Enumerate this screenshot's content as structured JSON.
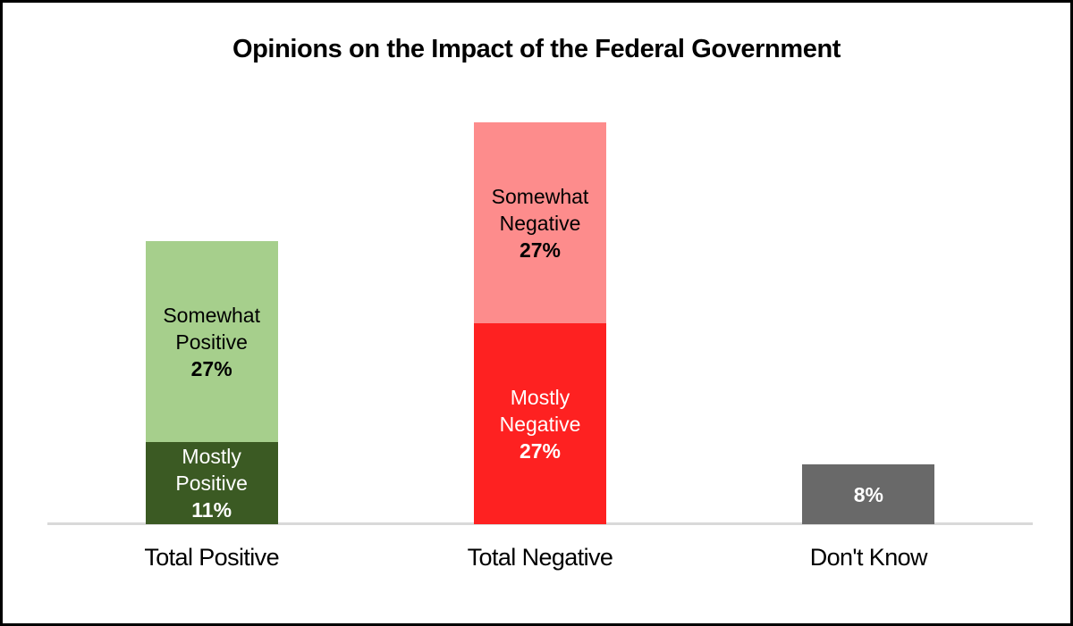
{
  "title": "Opinions on the Impact of the Federal Government",
  "chart_data": {
    "type": "bar",
    "subtype": "stacked-column",
    "title": "Opinions on the Impact of the Federal Government",
    "unit": "%",
    "ylim": [
      0,
      60
    ],
    "y_axis_visible": false,
    "gridlines": false,
    "legend_position": "none",
    "data_labels": "inside segments",
    "axis_line_color": "#D9D9D9",
    "background_color": "#FFFFFF",
    "frame_border_color": "#000000",
    "categories": [
      {
        "label": "Total Positive",
        "total": 38,
        "segments": [
          {
            "label": "Mostly Positive",
            "value": 11,
            "display": "11%",
            "color": "#3B5A23",
            "text_color": "#FFFFFF"
          },
          {
            "label": "Somewhat Positive",
            "value": 27,
            "display": "27%",
            "color": "#A6CF8C",
            "text_color": "#000000"
          }
        ]
      },
      {
        "label": "Total Negative",
        "total": 54,
        "segments": [
          {
            "label": "Mostly Negative",
            "value": 27,
            "display": "27%",
            "color": "#FE2121",
            "text_color": "#FFFFFF"
          },
          {
            "label": "Somewhat Negative",
            "value": 27,
            "display": "27%",
            "color": "#FD8C8C",
            "text_color": "#000000"
          }
        ]
      },
      {
        "label": "Don't Know",
        "total": 8,
        "segments": [
          {
            "label": "",
            "value": 8,
            "display": "8%",
            "color": "#696969",
            "text_color": "#FFFFFF"
          }
        ]
      }
    ]
  }
}
